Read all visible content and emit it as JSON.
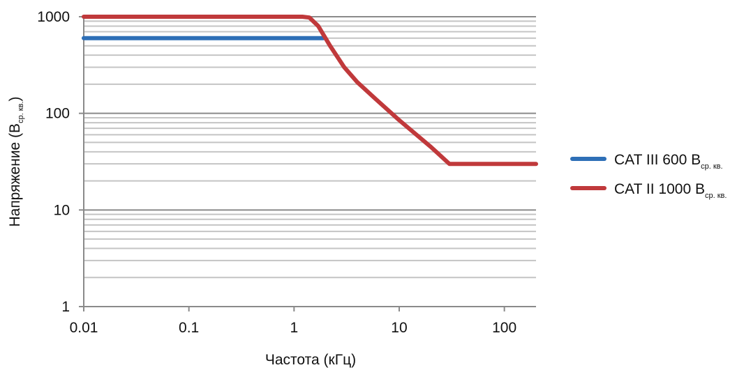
{
  "chart_data": {
    "type": "line",
    "title": "",
    "xlabel": "Частота (кГц)",
    "ylabel": {
      "text": "Напряжение (В",
      "subscript": "ср. кв.",
      "close": ")"
    },
    "x_scale": "log",
    "y_scale": "log",
    "xlim": [
      0.01,
      200
    ],
    "ylim": [
      1,
      1000
    ],
    "x_ticks": [
      "0.01",
      "0.1",
      "1",
      "10",
      "100"
    ],
    "y_ticks": [
      "1",
      "10",
      "100",
      "1000"
    ],
    "grid": "horizontal-minor",
    "legend_position": "right",
    "series": [
      {
        "name": "CAT III 600 В",
        "name_subscript": "ср. кв.",
        "color": "#2e6fb7",
        "points": [
          [
            0.01,
            600
          ],
          [
            1.9,
            600
          ]
        ]
      },
      {
        "name": "CAT II 1000 В",
        "name_subscript": "ср. кв.",
        "color": "#c0393b",
        "points": [
          [
            0.01,
            1000
          ],
          [
            1.2,
            1000
          ],
          [
            1.4,
            980
          ],
          [
            1.7,
            800
          ],
          [
            2.2,
            500
          ],
          [
            3,
            300
          ],
          [
            4,
            210
          ],
          [
            6,
            140
          ],
          [
            10,
            85
          ],
          [
            20,
            45
          ],
          [
            30,
            30
          ],
          [
            200,
            30
          ]
        ]
      }
    ]
  }
}
